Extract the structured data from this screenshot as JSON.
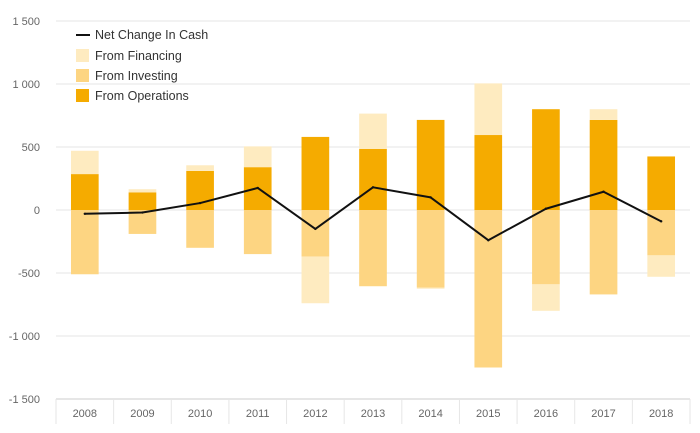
{
  "chart_data": {
    "type": "bar",
    "stacked": true,
    "categories": [
      "2008",
      "2009",
      "2010",
      "2011",
      "2012",
      "2013",
      "2014",
      "2015",
      "2016",
      "2017",
      "2018"
    ],
    "series": [
      {
        "name": "From Operations",
        "color": "#f5ab00",
        "values": [
          285,
          140,
          310,
          340,
          580,
          485,
          715,
          595,
          800,
          715,
          425
        ]
      },
      {
        "name": "From Investing",
        "color": "#fdd582",
        "values": [
          -510,
          -190,
          -300,
          -350,
          -370,
          -605,
          -615,
          -1250,
          -590,
          -670,
          -360
        ]
      },
      {
        "name": "From Financing",
        "color": "#feebc0",
        "values": [
          185,
          25,
          45,
          165,
          -370,
          280,
          -10,
          410,
          -210,
          85,
          -170
        ]
      }
    ],
    "line_series": {
      "name": "Net Change In Cash",
      "color": "#111111",
      "values": [
        -30,
        -20,
        55,
        175,
        -150,
        180,
        100,
        -240,
        10,
        145,
        -90
      ]
    },
    "legend_order": [
      "Net Change In Cash",
      "From Financing",
      "From Investing",
      "From Operations"
    ],
    "legend_position": "top-left",
    "ylim": [
      -1500,
      1500
    ],
    "yticks": [
      1500,
      1000,
      500,
      0,
      -500,
      -1000,
      -1500
    ],
    "ytick_labels": [
      "1 500",
      "1 000",
      "500",
      "0",
      "-500",
      "-1 000",
      "-1 500"
    ],
    "grid": true,
    "title": "",
    "xlabel": "",
    "ylabel": ""
  }
}
